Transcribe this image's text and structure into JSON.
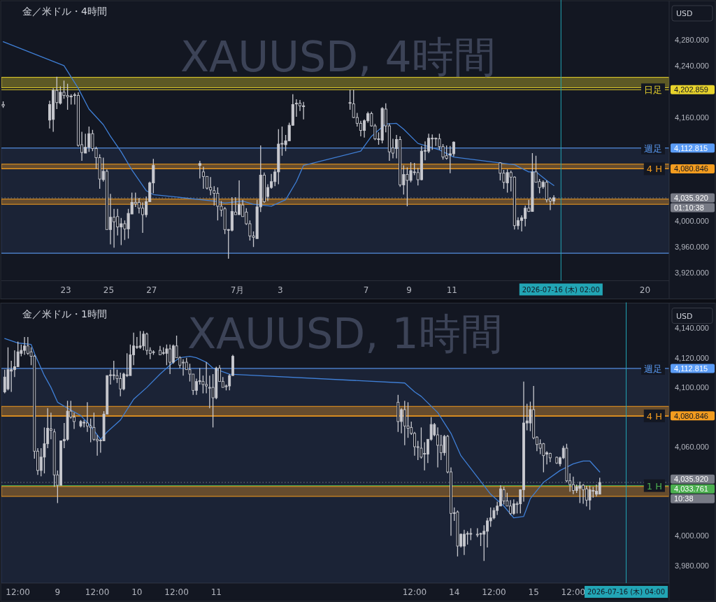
{
  "chart_data": [
    {
      "type": "candlestick",
      "title": "金／米ドル・4時間",
      "subtitle": "XAUUSD, 4時間",
      "ylabel": "USD",
      "color": "#c8c9cf",
      "x": [
        "2026-06-20T02:00",
        "2026-06-22T06:00",
        "2026-06-22T10:00",
        "2026-06-22T14:00",
        "2026-06-22T18:00",
        "2026-06-22T22:00",
        "2026-06-23T02:00",
        "2026-06-23T06:00",
        "2026-06-23T10:00",
        "2026-06-23T14:00",
        "2026-06-23T18:00",
        "2026-06-23T22:00",
        "2026-06-24T02:00",
        "2026-06-24T06:00",
        "2026-06-24T10:00",
        "2026-06-24T14:00",
        "2026-06-24T18:00",
        "2026-06-24T22:00",
        "2026-06-25T02:00",
        "2026-06-25T06:00",
        "2026-06-25T10:00",
        "2026-06-25T14:00",
        "2026-06-25T18:00",
        "2026-06-25T22:00",
        "2026-06-26T02:00",
        "2026-06-26T06:00",
        "2026-06-26T10:00",
        "2026-06-26T14:00",
        "2026-06-26T18:00",
        "2026-06-26T22:00",
        "2026-06-27T02:00",
        "2026-06-29T06:00",
        "2026-06-29T10:00",
        "2026-06-29T14:00",
        "2026-06-29T18:00",
        "2026-06-29T22:00",
        "2026-06-30T02:00",
        "2026-06-30T06:00",
        "2026-06-30T10:00",
        "2026-06-30T14:00",
        "2026-06-30T18:00",
        "2026-06-30T22:00",
        "2026-07-01T02:00",
        "2026-07-01T06:00",
        "2026-07-01T10:00",
        "2026-07-01T14:00",
        "2026-07-01T18:00",
        "2026-07-01T22:00",
        "2026-07-02T02:00",
        "2026-07-02T06:00",
        "2026-07-02T10:00",
        "2026-07-02T14:00",
        "2026-07-02T18:00",
        "2026-07-02T22:00",
        "2026-07-03T02:00",
        "2026-07-03T06:00",
        "2026-07-03T10:00",
        "2026-07-03T14:00",
        "2026-07-03T18:00",
        "2026-07-03T22:00",
        "2026-07-04T02:00",
        "2026-07-06T06:00",
        "2026-07-06T10:00",
        "2026-07-06T14:00",
        "2026-07-06T18:00",
        "2026-07-06T22:00",
        "2026-07-07T02:00",
        "2026-07-07T06:00",
        "2026-07-07T10:00",
        "2026-07-07T14:00",
        "2026-07-07T18:00",
        "2026-07-07T22:00",
        "2026-07-08T02:00",
        "2026-07-08T06:00",
        "2026-07-08T10:00",
        "2026-07-08T14:00",
        "2026-07-08T18:00",
        "2026-07-08T22:00",
        "2026-07-09T02:00",
        "2026-07-09T06:00",
        "2026-07-09T10:00",
        "2026-07-09T14:00",
        "2026-07-09T18:00",
        "2026-07-09T22:00",
        "2026-07-10T02:00",
        "2026-07-10T06:00",
        "2026-07-10T10:00",
        "2026-07-10T14:00",
        "2026-07-10T18:00",
        "2026-07-10T22:00",
        "2026-07-11T02:00",
        "2026-07-13T06:00",
        "2026-07-13T10:00",
        "2026-07-13T14:00",
        "2026-07-13T18:00",
        "2026-07-13T22:00",
        "2026-07-14T02:00",
        "2026-07-14T06:00",
        "2026-07-14T10:00",
        "2026-07-14T14:00",
        "2026-07-14T18:00",
        "2026-07-14T22:00",
        "2026-07-15T02:00",
        "2026-07-15T06:00",
        "2026-07-15T10:00",
        "2026-07-15T14:00",
        "2026-07-15T18:00"
      ],
      "ohlc": [
        [
          4180,
          4185,
          4175,
          4178
        ],
        [
          4156,
          4186,
          4143,
          4180
        ],
        [
          4157,
          4205,
          4138,
          4202
        ],
        [
          4202,
          4223,
          4173,
          4183
        ],
        [
          4182,
          4208,
          4180,
          4199
        ],
        [
          4199,
          4217,
          4189,
          4194
        ],
        [
          4194,
          4212,
          4172,
          4192
        ],
        [
          4192,
          4196,
          4180,
          4193
        ],
        [
          4194,
          4198,
          4180,
          4195
        ],
        [
          4194,
          4199,
          4115,
          4117
        ],
        [
          4118,
          4138,
          4093,
          4106
        ],
        [
          4105,
          4135,
          4105,
          4114
        ],
        [
          4114,
          4146,
          4107,
          4135
        ],
        [
          4135,
          4141,
          4108,
          4112
        ],
        [
          4112,
          4115,
          4081,
          4098
        ],
        [
          4098,
          4103,
          4050,
          4065
        ],
        [
          4064,
          4098,
          4061,
          4077
        ],
        [
          4077,
          4080,
          3987,
          3987
        ],
        [
          3987,
          4042,
          3964,
          4006
        ],
        [
          4006,
          4019,
          3959,
          3999
        ],
        [
          4007,
          4019,
          3978,
          3991
        ],
        [
          3991,
          4005,
          3963,
          3996
        ],
        [
          3996,
          4001,
          3971,
          3988
        ],
        [
          3988,
          4019,
          3973,
          4012
        ],
        [
          4011,
          4044,
          4011,
          4029
        ],
        [
          4029,
          4044,
          4022,
          4027
        ],
        [
          4029,
          4036,
          4012,
          4020
        ],
        [
          4020,
          4029,
          3982,
          4010
        ],
        [
          4010,
          4038,
          4006,
          4030
        ],
        [
          4030,
          4061,
          4030,
          4059
        ],
        [
          4059,
          4096,
          4043,
          4086
        ],
        [
          4086,
          4093,
          4066,
          4089
        ],
        [
          4076,
          4084,
          4050,
          4069
        ],
        [
          4069,
          4069,
          4049,
          4051
        ],
        [
          4052,
          4068,
          4040,
          4048
        ],
        [
          4047,
          4054,
          4024,
          4043
        ],
        [
          4043,
          4052,
          4001,
          4023
        ],
        [
          4023,
          4031,
          4007,
          4017
        ],
        [
          4019,
          4022,
          3980,
          3987
        ],
        [
          3987,
          3988,
          3942,
          3987
        ],
        [
          3986,
          4037,
          3984,
          4015
        ],
        [
          4014,
          4037,
          4010,
          4010
        ],
        [
          4010,
          4063,
          4010,
          4026
        ],
        [
          4025,
          4033,
          4007,
          4007
        ],
        [
          4014,
          4020,
          3994,
          3996
        ],
        [
          3996,
          4001,
          3970,
          3977
        ],
        [
          3977,
          3984,
          3960,
          3975
        ],
        [
          3973,
          4033,
          3973,
          4022
        ],
        [
          4022,
          4117,
          4014,
          4071
        ],
        [
          4071,
          4075,
          4028,
          4030
        ],
        [
          4038,
          4057,
          4031,
          4052
        ],
        [
          4052,
          4073,
          4050,
          4061
        ],
        [
          4061,
          4080,
          4054,
          4076
        ],
        [
          4076,
          4142,
          4057,
          4119
        ],
        [
          4119,
          4146,
          4101,
          4120
        ],
        [
          4118,
          4133,
          4108,
          4124
        ],
        [
          4124,
          4152,
          4124,
          4148
        ],
        [
          4148,
          4196,
          4147,
          4180
        ],
        [
          4181,
          4188,
          4161,
          4182
        ],
        [
          4182,
          4187,
          4170,
          4178
        ],
        [
          4177,
          4184,
          4157,
          4178
        ],
        [
          4182,
          4203,
          4172,
          4183
        ],
        [
          4181,
          4203,
          4159,
          4160
        ],
        [
          4160,
          4167,
          4146,
          4151
        ],
        [
          4151,
          4155,
          4131,
          4140
        ],
        [
          4140,
          4157,
          4129,
          4155
        ],
        [
          4155,
          4169,
          4152,
          4166
        ],
        [
          4166,
          4169,
          4146,
          4147
        ],
        [
          4147,
          4150,
          4125,
          4127
        ],
        [
          4127,
          4137,
          4118,
          4127
        ],
        [
          4125,
          4176,
          4120,
          4174
        ],
        [
          4173,
          4182,
          4137,
          4147
        ],
        [
          4147,
          4151,
          4093,
          4107
        ],
        [
          4113,
          4127,
          4097,
          4105
        ],
        [
          4112,
          4133,
          4097,
          4126
        ],
        [
          4126,
          4131,
          4053,
          4056
        ],
        [
          4056,
          4086,
          4041,
          4072
        ],
        [
          4072,
          4083,
          4023,
          4063
        ],
        [
          4063,
          4091,
          4060,
          4078
        ],
        [
          4075,
          4090,
          4071,
          4076
        ],
        [
          4075,
          4082,
          4055,
          4064
        ],
        [
          4064,
          4116,
          4063,
          4108
        ],
        [
          4108,
          4123,
          4094,
          4109
        ],
        [
          4108,
          4135,
          4105,
          4128
        ],
        [
          4127,
          4134,
          4110,
          4128
        ],
        [
          4128,
          4129,
          4116,
          4127
        ],
        [
          4127,
          4135,
          4110,
          4115
        ],
        [
          4115,
          4119,
          4095,
          4099
        ],
        [
          4101,
          4117,
          4095,
          4097
        ],
        [
          4102,
          4116,
          4074,
          4104
        ],
        [
          4104,
          4123,
          4100,
          4122
        ],
        [
          4090,
          4091,
          4063,
          4074
        ],
        [
          4074,
          4079,
          4050,
          4060
        ],
        [
          4059,
          4080,
          4044,
          4075
        ],
        [
          4075,
          4078,
          4046,
          4068
        ],
        [
          4068,
          4069,
          3987,
          3993
        ],
        [
          3993,
          4006,
          3987,
          4001
        ],
        [
          4001,
          4009,
          3984,
          4005
        ],
        [
          4004,
          4024,
          3992,
          4020
        ],
        [
          4020,
          4033,
          4014,
          4015
        ],
        [
          4015,
          4105,
          4015,
          4076
        ],
        [
          4076,
          4101,
          4060,
          4060
        ],
        [
          4061,
          4065,
          4043,
          4052
        ],
        [
          4053,
          4063,
          4050,
          4060
        ],
        [
          4060,
          4063,
          4029,
          4033
        ],
        [
          4034,
          4037,
          4017,
          4031
        ],
        [
          4031,
          4040,
          4026,
          4036
        ]
      ],
      "series": [
        {
          "type": "line",
          "color": "#3f7fd6",
          "x": [
            "2026-06-20T02:00",
            "2026-06-22T22:00",
            "2026-06-23T14:00",
            "2026-06-24T02:00",
            "2026-06-24T18:00",
            "2026-06-25T02:00",
            "2026-06-25T14:00",
            "2026-06-26T02:00",
            "2026-06-26T18:00",
            "2026-06-27T02:00",
            "2026-06-29T22:00",
            "2026-06-30T10:00",
            "2026-07-01T06:00",
            "2026-07-01T18:00",
            "2026-07-02T14:00",
            "2026-07-03T06:00",
            "2026-07-03T18:00",
            "2026-07-04T02:00",
            "2026-07-06T18:00",
            "2026-07-07T06:00",
            "2026-07-07T22:00",
            "2026-07-08T10:00",
            "2026-07-08T18:00",
            "2026-07-09T10:00",
            "2026-07-10T10:00",
            "2026-07-11T02:00",
            "2026-07-13T22:00",
            "2026-07-14T14:00",
            "2026-07-14T22:00",
            "2026-07-15T10:00",
            "2026-07-15T18:00"
          ],
          "values": [
            4277,
            4240,
            4205,
            4173,
            4149,
            4131,
            4107,
            4079,
            4047,
            4041,
            4031,
            4028,
            4031,
            4026,
            4023,
            4033,
            4061,
            4086,
            4108,
            4131,
            4150,
            4151,
            4142,
            4120,
            4110,
            4099,
            4087,
            4076,
            4076,
            4063,
            4055
          ]
        }
      ],
      "xlim": [
        "2026-06-20T00:00",
        "2026-07-21T03:00"
      ],
      "ylim": [
        3908,
        4336
      ],
      "xticks": [
        {
          "value": "2026-06-23T00:00",
          "label": "23"
        },
        {
          "value": "2026-06-25T00:00",
          "label": "25"
        },
        {
          "value": "2026-06-27T00:00",
          "label": "27"
        },
        {
          "value": "2026-07-01T00:00",
          "label": "7月"
        },
        {
          "value": "2026-07-03T00:00",
          "label": "3"
        },
        {
          "value": "2026-07-07T00:00",
          "label": "7"
        },
        {
          "value": "2026-07-09T00:00",
          "label": "9"
        },
        {
          "value": "2026-07-11T00:00",
          "label": "11"
        },
        {
          "value": "2026-07-20T00:00",
          "label": "20"
        }
      ],
      "yticks": [
        {
          "value": 4280,
          "label": "4,280.000"
        },
        {
          "value": 4240,
          "label": "4,240.000"
        },
        {
          "value": 4202.859,
          "label": "4,202.859"
        },
        {
          "value": 4160,
          "label": "4,160.000"
        },
        {
          "value": 4112.815,
          "label": "4,112.815"
        },
        {
          "value": 4080.846,
          "label": "4,080.846"
        },
        {
          "value": 4035.92,
          "label": "4,035.920"
        },
        {
          "value": 4000,
          "label": "4,000.000"
        },
        {
          "value": 3960,
          "label": "3,960.000"
        },
        {
          "value": 3920,
          "label": "3,920.000"
        }
      ],
      "ref_lines": [
        {
          "axis": "y",
          "value": 4202.859,
          "label": "日足",
          "color": "#e8d32c"
        },
        {
          "axis": "y",
          "value": 4112.815,
          "label": "週足",
          "color": "#5b9cf6"
        },
        {
          "axis": "y",
          "value": 4080.846,
          "label": "4 H",
          "color": "#f39c1f"
        },
        {
          "axis": "y",
          "value": 4035.92,
          "color": "#787b86",
          "line_style": "dotted"
        },
        {
          "axis": "y",
          "value": 3950.5,
          "color": "#5b9cf6"
        },
        {
          "axis": "x",
          "value": "2026-07-16T02:00",
          "label": "2026-07-16 (木)  02:00",
          "color": "#22a5b5"
        }
      ],
      "bands": [
        {
          "axis": "y",
          "from": 3950.5,
          "to": 4112.815,
          "color": "#2a3a5c"
        },
        {
          "axis": "y",
          "from": 4206,
          "to": 4222,
          "color": "#e8d32c"
        },
        {
          "axis": "y",
          "from": 4081,
          "to": 4088,
          "color": "#f39c1f"
        },
        {
          "axis": "y",
          "from": 4026,
          "to": 4034,
          "color": "#f39c1f"
        }
      ],
      "annotations": [
        "01:10:38"
      ]
    },
    {
      "type": "candlestick",
      "title": "金／米ドル・1時間",
      "subtitle": "XAUUSD, 1時間",
      "ylabel": "USD",
      "color": "#c8c9cf",
      "x": [
        "2026-07-08T08:00",
        "2026-07-08T09:00",
        "2026-07-08T10:00",
        "2026-07-08T11:00",
        "2026-07-08T12:00",
        "2026-07-08T13:00",
        "2026-07-08T14:00",
        "2026-07-08T15:00",
        "2026-07-08T16:00",
        "2026-07-08T17:00",
        "2026-07-08T18:00",
        "2026-07-08T19:00",
        "2026-07-08T20:00",
        "2026-07-08T21:00",
        "2026-07-08T22:00",
        "2026-07-08T23:00",
        "2026-07-09T00:00",
        "2026-07-09T01:00",
        "2026-07-09T02:00",
        "2026-07-09T03:00",
        "2026-07-09T04:00",
        "2026-07-09T05:00",
        "2026-07-09T07:00",
        "2026-07-09T08:00",
        "2026-07-09T09:00",
        "2026-07-09T10:00",
        "2026-07-09T11:00",
        "2026-07-09T12:00",
        "2026-07-09T13:00",
        "2026-07-09T14:00",
        "2026-07-09T15:00",
        "2026-07-09T16:00",
        "2026-07-09T17:00",
        "2026-07-09T18:00",
        "2026-07-09T19:00",
        "2026-07-09T20:00",
        "2026-07-09T21:00",
        "2026-07-09T22:00",
        "2026-07-09T23:00",
        "2026-07-10T00:00",
        "2026-07-10T01:00",
        "2026-07-10T02:00",
        "2026-07-10T03:00",
        "2026-07-10T04:00",
        "2026-07-10T05:00",
        "2026-07-10T07:00",
        "2026-07-10T08:00",
        "2026-07-10T09:00",
        "2026-07-10T10:00",
        "2026-07-10T11:00",
        "2026-07-10T12:00",
        "2026-07-10T13:00",
        "2026-07-10T14:00",
        "2026-07-10T15:00",
        "2026-07-10T16:00",
        "2026-07-10T17:00",
        "2026-07-10T18:00",
        "2026-07-10T19:00",
        "2026-07-10T20:00",
        "2026-07-10T21:00",
        "2026-07-10T22:00",
        "2026-07-10T23:00",
        "2026-07-11T00:00",
        "2026-07-11T01:00",
        "2026-07-11T02:00",
        "2026-07-11T03:00",
        "2026-07-11T04:00",
        "2026-07-11T05:00",
        "2026-07-13T07:00",
        "2026-07-13T08:00",
        "2026-07-13T09:00",
        "2026-07-13T10:00",
        "2026-07-13T11:00",
        "2026-07-13T12:00",
        "2026-07-13T13:00",
        "2026-07-13T14:00",
        "2026-07-13T15:00",
        "2026-07-13T16:00",
        "2026-07-13T17:00",
        "2026-07-13T18:00",
        "2026-07-13T19:00",
        "2026-07-13T20:00",
        "2026-07-13T21:00",
        "2026-07-13T22:00",
        "2026-07-13T23:00",
        "2026-07-14T00:00",
        "2026-07-14T01:00",
        "2026-07-14T02:00",
        "2026-07-14T03:00",
        "2026-07-14T04:00",
        "2026-07-14T05:00",
        "2026-07-14T07:00",
        "2026-07-14T08:00",
        "2026-07-14T09:00",
        "2026-07-14T10:00",
        "2026-07-14T11:00",
        "2026-07-14T12:00",
        "2026-07-14T13:00",
        "2026-07-14T14:00",
        "2026-07-14T15:00",
        "2026-07-14T16:00",
        "2026-07-14T17:00",
        "2026-07-14T18:00",
        "2026-07-14T19:00",
        "2026-07-14T20:00",
        "2026-07-14T21:00",
        "2026-07-14T22:00",
        "2026-07-14T23:00",
        "2026-07-15T00:00",
        "2026-07-15T01:00",
        "2026-07-15T02:00",
        "2026-07-15T03:00",
        "2026-07-15T04:00",
        "2026-07-15T05:00",
        "2026-07-15T07:00",
        "2026-07-15T08:00",
        "2026-07-15T09:00",
        "2026-07-15T10:00",
        "2026-07-15T11:00",
        "2026-07-15T12:00",
        "2026-07-15T13:00",
        "2026-07-15T14:00",
        "2026-07-15T15:00",
        "2026-07-15T16:00",
        "2026-07-15T17:00",
        "2026-07-15T18:00",
        "2026-07-15T19:00",
        "2026-07-15T20:00"
      ],
      "ohlc": [
        [
          4097,
          4112,
          4096,
          4107
        ],
        [
          4099,
          4127,
          4098,
          4112
        ],
        [
          4111,
          4118,
          4097,
          4112
        ],
        [
          4112,
          4125,
          4107,
          4114
        ],
        [
          4114,
          4131,
          4114,
          4124
        ],
        [
          4123,
          4129,
          4121,
          4125
        ],
        [
          4125,
          4134,
          4122,
          4128
        ],
        [
          4128,
          4134,
          4122,
          4123
        ],
        [
          4124,
          4127,
          4115,
          4121
        ],
        [
          4121,
          4122,
          4052,
          4057
        ],
        [
          4057,
          4059,
          4041,
          4044
        ],
        [
          4044,
          4059,
          4040,
          4053
        ],
        [
          4053,
          4073,
          4042,
          4062
        ],
        [
          4062,
          4086,
          4059,
          4072.5
        ],
        [
          4072,
          4083,
          4065,
          4071
        ],
        [
          4070,
          4072,
          4033,
          4041
        ],
        [
          4041,
          4044,
          4022,
          4034
        ],
        [
          4034,
          4064,
          4034,
          4064
        ],
        [
          4064,
          4076,
          4059,
          4065
        ],
        [
          4065,
          4091,
          4064,
          4084
        ],
        [
          4084,
          4091,
          4079,
          4080
        ],
        [
          4080,
          4083,
          4072,
          4077
        ],
        [
          4074,
          4078,
          4073,
          4077
        ],
        [
          4076,
          4078,
          4073,
          4076.5
        ],
        [
          4076,
          4090,
          4070,
          4074
        ],
        [
          4074,
          4079,
          4063,
          4073
        ],
        [
          4073,
          4083,
          4064,
          4065
        ],
        [
          4065,
          4068,
          4054,
          4064
        ],
        [
          4064,
          4065,
          4056,
          4064.5
        ],
        [
          4064,
          4084,
          4064,
          4082
        ],
        [
          4082,
          4108,
          4082,
          4108
        ],
        [
          4108,
          4112,
          4102,
          4108.5
        ],
        [
          4108,
          4118,
          4105,
          4108.5
        ],
        [
          4108,
          4112,
          4103,
          4106
        ],
        [
          4106,
          4110,
          4094,
          4099
        ],
        [
          4099,
          4110,
          4098,
          4109
        ],
        [
          4108,
          4123,
          4107,
          4108.5
        ],
        [
          4108,
          4129,
          4108,
          4122
        ],
        [
          4122,
          4137,
          4115,
          4128
        ],
        [
          4127,
          4134,
          4126,
          4127.5
        ],
        [
          4127,
          4138,
          4126,
          4128
        ],
        [
          4128,
          4138,
          4125,
          4136
        ],
        [
          4136,
          4137,
          4122,
          4125
        ],
        [
          4125,
          4127,
          4119,
          4123
        ],
        [
          4124,
          4125,
          4122,
          4123.5
        ],
        [
          4125,
          4128,
          4122,
          4122
        ],
        [
          4123,
          4127,
          4122,
          4123.5
        ],
        [
          4123,
          4129,
          4115,
          4126
        ],
        [
          4126,
          4129,
          4109,
          4117
        ],
        [
          4117,
          4129,
          4116,
          4128
        ],
        [
          4128,
          4135,
          4120,
          4120
        ],
        [
          4120,
          4121,
          4113,
          4115
        ],
        [
          4117,
          4119,
          4108,
          4116.5
        ],
        [
          4117,
          4120,
          4112,
          4112
        ],
        [
          4112,
          4116,
          4104,
          4109
        ],
        [
          4109,
          4109,
          4095,
          4098
        ],
        [
          4098,
          4106,
          4095,
          4104
        ],
        [
          4104,
          4113,
          4102,
          4104.5
        ],
        [
          4104,
          4108,
          4096,
          4102
        ],
        [
          4102,
          4117,
          4096,
          4101
        ],
        [
          4100,
          4108,
          4086,
          4099.5
        ],
        [
          4100,
          4109,
          4073,
          4093
        ],
        [
          4093,
          4114,
          4092,
          4113
        ],
        [
          4113,
          4115,
          4104,
          4104
        ],
        [
          4104,
          4107,
          4100,
          4100
        ],
        [
          4101,
          4102,
          4098,
          4100.5
        ],
        [
          4101,
          4109,
          4098,
          4108
        ],
        [
          4108,
          4122,
          4108,
          4121
        ],
        [
          4090,
          4095,
          4070,
          4077
        ],
        [
          4077,
          4086,
          4069,
          4085
        ],
        [
          4085,
          4091,
          4061,
          4074
        ],
        [
          4074,
          4090,
          4066,
          4072.5
        ],
        [
          4073,
          4077,
          4068,
          4069
        ],
        [
          4069,
          4070,
          4054,
          4060
        ],
        [
          4060,
          4064,
          4051,
          4059.5
        ],
        [
          4059,
          4073,
          4052,
          4053
        ],
        [
          4055,
          4063,
          4044,
          4055.5
        ],
        [
          4055,
          4065,
          4049,
          4065
        ],
        [
          4065,
          4080,
          4064,
          4075
        ],
        [
          4068,
          4076,
          4067,
          4075
        ],
        [
          4068,
          4073,
          4046,
          4061
        ],
        [
          4061,
          4068,
          4051,
          4056
        ],
        [
          4056,
          4068,
          4054,
          4067
        ],
        [
          4067,
          4068,
          4042,
          4043
        ],
        [
          4043,
          4046,
          4000,
          4015
        ],
        [
          4015,
          4019,
          4010,
          4015.5
        ],
        [
          4016,
          4017,
          3986,
          3993
        ],
        [
          3993,
          4001.5,
          3992,
          4001
        ],
        [
          3993,
          4004,
          3987,
          4001
        ],
        [
          4001,
          4003,
          3994,
          4001.5
        ],
        [
          4001,
          4005,
          3997,
          4001.5
        ],
        [
          4001,
          4005,
          3999,
          4000.5
        ],
        [
          4001,
          4002,
          3993,
          4001.5
        ],
        [
          4001,
          4007,
          3983,
          4003
        ],
        [
          4003,
          4012,
          3992,
          4010
        ],
        [
          4010,
          4019,
          4006,
          4012
        ],
        [
          4012,
          4019,
          4011,
          4017
        ],
        [
          4017,
          4023,
          4014,
          4020
        ],
        [
          4020,
          4034,
          4020,
          4031.6
        ],
        [
          4031,
          4033,
          4021,
          4023.4
        ],
        [
          4023.5,
          4029,
          4020,
          4020
        ],
        [
          4020,
          4024,
          4014,
          4015
        ],
        [
          4015,
          4024.5,
          4014,
          4021.5
        ],
        [
          4021.5,
          4023,
          4015,
          4021
        ],
        [
          4021.5,
          4031.3,
          4015,
          4031
        ],
        [
          4031,
          4104,
          4023,
          4076
        ],
        [
          4076,
          4089,
          4071,
          4077.4
        ],
        [
          4076,
          4090.4,
          4070.5,
          4085
        ],
        [
          4085,
          4101,
          4065,
          4066
        ],
        [
          4066.5,
          4067,
          4057,
          4061.5
        ],
        [
          4062,
          4065,
          4055,
          4059
        ],
        [
          4062,
          4062.6,
          4042.7,
          4054
        ],
        [
          4055,
          4057,
          4048,
          4056
        ],
        [
          4055.5,
          4056,
          4049.6,
          4052.5
        ],
        [
          4052.9,
          4053.4,
          4048.4,
          4049
        ],
        [
          4048.5,
          4053.4,
          4046.8,
          4052.5
        ],
        [
          4052.5,
          4060.7,
          4051.7,
          4059
        ],
        [
          4059,
          4062,
          4036,
          4037
        ],
        [
          4037,
          4042,
          4029.7,
          4034.5
        ],
        [
          4034.5,
          4039.8,
          4028,
          4030.5
        ],
        [
          4030.5,
          4034.5,
          4028.8,
          4033
        ],
        [
          4032,
          4036.5,
          4022,
          4033.6
        ],
        [
          4034,
          4034.9,
          4021.5,
          4031
        ],
        [
          4031.6,
          4033.7,
          4019.8,
          4024
        ],
        [
          4024,
          4033.7,
          4017.4,
          4031
        ],
        [
          4030,
          4033,
          4025.6,
          4030.5
        ],
        [
          4028,
          4034.5,
          4026.4,
          4030
        ],
        [
          4028,
          4039.1,
          4028,
          4035.9
        ]
      ],
      "series": [
        {
          "type": "line",
          "color": "#3f7fd6",
          "x": [
            "2026-07-08T08:00",
            "2026-07-08T12:00",
            "2026-07-08T16:00",
            "2026-07-08T17:00",
            "2026-07-08T20:00",
            "2026-07-08T22:00",
            "2026-07-09T00:00",
            "2026-07-09T03:00",
            "2026-07-09T07:00",
            "2026-07-09T10:00",
            "2026-07-09T13:00",
            "2026-07-09T15:00",
            "2026-07-09T19:00",
            "2026-07-09T21:00",
            "2026-07-09T23:00",
            "2026-07-10T03:00",
            "2026-07-10T07:00",
            "2026-07-10T11:00",
            "2026-07-10T13:00",
            "2026-07-10T16:00",
            "2026-07-10T18:00",
            "2026-07-10T21:00",
            "2026-07-10T23:00",
            "2026-07-11T04:00",
            "2026-07-13T09:00",
            "2026-07-13T12:00",
            "2026-07-13T14:00",
            "2026-07-13T19:00",
            "2026-07-13T23:00",
            "2026-07-14T02:00",
            "2026-07-14T07:00",
            "2026-07-14T11:00",
            "2026-07-14T15:00",
            "2026-07-14T18:00",
            "2026-07-14T21:00",
            "2026-07-14T23:00",
            "2026-07-15T03:00",
            "2026-07-15T08:00",
            "2026-07-15T12:00",
            "2026-07-15T15:00",
            "2026-07-15T17:00",
            "2026-07-15T20:00"
          ],
          "values": [
            4133,
            4130,
            4129,
            4123,
            4108,
            4100,
            4090,
            4086,
            4081,
            4074,
            4065,
            4070,
            4078,
            4085,
            4092,
            4100,
            4109,
            4117,
            4120,
            4121,
            4120,
            4117,
            4113,
            4109,
            4103,
            4097,
            4094,
            4083,
            4069,
            4054,
            4039.5,
            4028,
            4020,
            4012,
            4013,
            4025,
            4036,
            4044,
            4048.5,
            4050.4,
            4050.4,
            4043
          ]
        }
      ],
      "xlim": [
        "2026-07-08T07:00",
        "2026-07-16T17:00"
      ],
      "ylim": [
        3968,
        4155
      ],
      "xticks": [
        {
          "value": "2026-07-08T12:00",
          "label": "12:00"
        },
        {
          "value": "2026-07-09T00:00",
          "label": "9"
        },
        {
          "value": "2026-07-09T12:00",
          "label": "12:00"
        },
        {
          "value": "2026-07-10T00:00",
          "label": "10"
        },
        {
          "value": "2026-07-10T12:00",
          "label": "12:00"
        },
        {
          "value": "2026-07-11T00:00",
          "label": "11"
        },
        {
          "value": "2026-07-13T12:00",
          "label": "12:00"
        },
        {
          "value": "2026-07-14T00:00",
          "label": "14"
        },
        {
          "value": "2026-07-14T12:00",
          "label": "12:00"
        },
        {
          "value": "2026-07-15T00:00",
          "label": "15"
        },
        {
          "value": "2026-07-15T12:00",
          "label": "12:00"
        }
      ],
      "yticks": [
        {
          "value": 4140,
          "label": "4,140.000"
        },
        {
          "value": 4120,
          "label": "4,120.000"
        },
        {
          "value": 4112.815,
          "label": "4,112.815"
        },
        {
          "value": 4100,
          "label": "4,100.000"
        },
        {
          "value": 4080.846,
          "label": "4,080.846"
        },
        {
          "value": 4060,
          "label": "4,060.000"
        },
        {
          "value": 4035.92,
          "label": "4,035.920"
        },
        {
          "value": 4033.761,
          "label": "4,033.761"
        },
        {
          "value": 4000,
          "label": "4,000.000"
        },
        {
          "value": 3980,
          "label": "3,980.000"
        }
      ],
      "ref_lines": [
        {
          "axis": "y",
          "value": 4112.815,
          "label": "週足",
          "color": "#5b9cf6"
        },
        {
          "axis": "y",
          "value": 4080.846,
          "label": "4 H",
          "color": "#f39c1f"
        },
        {
          "axis": "y",
          "value": 4035.92,
          "color": "#787b86",
          "line_style": "dotted"
        },
        {
          "axis": "y",
          "value": 4033.761,
          "label": "1 H",
          "color": "#4caf50"
        },
        {
          "axis": "x",
          "value": "2026-07-16T04:00",
          "label": "2026-07-16 (木)  04:00",
          "color": "#22a5b5"
        }
      ],
      "bands": [
        {
          "axis": "y",
          "from": 3968,
          "to": 4112.815,
          "color": "#2a3a5c"
        },
        {
          "axis": "y",
          "from": 4080.6,
          "to": 4087.2,
          "color": "#f39c1f"
        },
        {
          "axis": "y",
          "from": 4026.5,
          "to": 4033.2,
          "color": "#f39c1f"
        }
      ],
      "annotations": [
        "10:38"
      ]
    }
  ]
}
